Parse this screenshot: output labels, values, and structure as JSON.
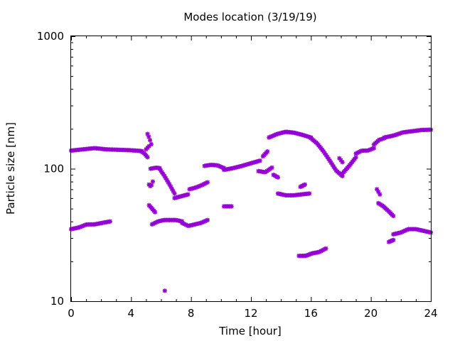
{
  "chart_data": {
    "type": "scatter",
    "title": "Modes location (3/19/19)",
    "xlabel": "Time [hour]",
    "ylabel": "Particle size [nm]",
    "xlim": [
      0,
      24
    ],
    "ylim": [
      10,
      1000
    ],
    "yscale": "log",
    "xticks": [
      0,
      4,
      8,
      12,
      16,
      20,
      24
    ],
    "xtick_labels": [
      "0",
      "4",
      "8",
      "12",
      "16",
      "20",
      "24"
    ],
    "yticks": [
      10,
      100,
      1000
    ],
    "ytick_labels": [
      "10",
      "100",
      "1000"
    ],
    "grid": false,
    "legend": "none",
    "marker_color": "#9400d3",
    "marker": "asterisk",
    "segments": [
      {
        "x0": 0.0,
        "x1": 4.7,
        "y": [
          137,
          140,
          143,
          140,
          139,
          138,
          136
        ]
      },
      {
        "x0": 4.7,
        "x1": 5.1,
        "y": [
          135,
          130,
          122
        ]
      },
      {
        "x0": 0.0,
        "x1": 2.6,
        "y": [
          35,
          36,
          38,
          38,
          39,
          40
        ]
      },
      {
        "x0": 5.1,
        "x1": 5.35,
        "y": [
          183,
          170,
          153
        ]
      },
      {
        "x0": 5.0,
        "x1": 5.2,
        "y": [
          140,
          148
        ]
      },
      {
        "x0": 5.3,
        "x1": 5.9,
        "y": [
          100,
          101,
          102,
          101
        ]
      },
      {
        "x0": 5.2,
        "x1": 5.45,
        "y": [
          76,
          73,
          80
        ]
      },
      {
        "x0": 5.9,
        "x1": 6.9,
        "y": [
          100,
          88,
          76,
          65
        ]
      },
      {
        "x0": 5.2,
        "x1": 5.6,
        "y": [
          53,
          50,
          47
        ]
      },
      {
        "x0": 5.4,
        "x1": 7.4,
        "y": [
          38,
          40,
          41,
          41,
          41,
          40
        ]
      },
      {
        "x0": 7.4,
        "x1": 9.1,
        "y": [
          39,
          37,
          38,
          39,
          41
        ]
      },
      {
        "x0": 6.9,
        "x1": 7.8,
        "y": [
          60,
          62,
          64
        ]
      },
      {
        "x0": 7.9,
        "x1": 9.1,
        "y": [
          70,
          72,
          75,
          79
        ]
      },
      {
        "x0": 8.9,
        "x1": 10.2,
        "y": [
          105,
          107,
          106,
          101
        ]
      },
      {
        "x0": 10.2,
        "x1": 12.6,
        "y": [
          98,
          101,
          105,
          110,
          115
        ]
      },
      {
        "x0": 10.2,
        "x1": 10.7,
        "y": [
          52,
          52
        ]
      },
      {
        "x0": 12.5,
        "x1": 13.4,
        "y": [
          96,
          94,
          102
        ]
      },
      {
        "x0": 12.8,
        "x1": 13.1,
        "y": [
          124,
          135
        ]
      },
      {
        "x0": 13.2,
        "x1": 16.0,
        "y": [
          172,
          183,
          190,
          187,
          180,
          172
        ]
      },
      {
        "x0": 16.0,
        "x1": 18.1,
        "y": [
          170,
          155,
          135,
          115,
          97,
          88
        ]
      },
      {
        "x0": 13.5,
        "x1": 13.8,
        "y": [
          90,
          86
        ]
      },
      {
        "x0": 13.8,
        "x1": 15.9,
        "y": [
          65,
          63,
          63,
          64,
          65
        ]
      },
      {
        "x0": 15.3,
        "x1": 15.6,
        "y": [
          73,
          76
        ]
      },
      {
        "x0": 15.2,
        "x1": 17.0,
        "y": [
          22,
          22,
          23,
          23.5,
          25
        ]
      },
      {
        "x0": 17.9,
        "x1": 18.1,
        "y": [
          120,
          112
        ]
      },
      {
        "x0": 18.1,
        "x1": 19.0,
        "y": [
          92,
          105,
          122
        ]
      },
      {
        "x0": 19.0,
        "x1": 20.2,
        "y": [
          130,
          137,
          137,
          143
        ]
      },
      {
        "x0": 20.2,
        "x1": 20.9,
        "y": [
          152,
          165,
          170
        ]
      },
      {
        "x0": 20.9,
        "x1": 24.0,
        "y": [
          172,
          178,
          188,
          192,
          196,
          197
        ]
      },
      {
        "x0": 20.4,
        "x1": 20.6,
        "y": [
          70,
          64
        ]
      },
      {
        "x0": 20.5,
        "x1": 21.5,
        "y": [
          55,
          52,
          48,
          44
        ]
      },
      {
        "x0": 21.2,
        "x1": 21.5,
        "y": [
          28,
          29
        ]
      },
      {
        "x0": 21.5,
        "x1": 24.0,
        "y": [
          32,
          33,
          35,
          35,
          34,
          33
        ]
      }
    ],
    "isolated_points": [
      {
        "x": 6.25,
        "y": 12
      }
    ]
  }
}
